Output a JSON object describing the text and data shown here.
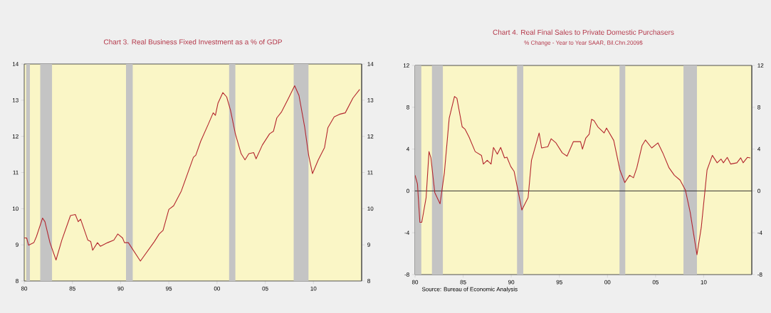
{
  "chart_data": [
    {
      "type": "line",
      "title": "Chart 3. Real Business Fixed Investment as a % of GDP",
      "x": [
        1980.0,
        1980.25,
        1980.45,
        1981.0,
        1981.27,
        1981.9,
        1982.15,
        1982.67,
        1983.3,
        1983.9,
        1984.8,
        1985.3,
        1985.6,
        1985.85,
        1986.6,
        1986.9,
        1987.1,
        1987.6,
        1987.9,
        1988.65,
        1989.3,
        1989.7,
        1990.2,
        1990.4,
        1990.8,
        1992.05,
        1993.5,
        1994.0,
        1994.4,
        1995.0,
        1995.5,
        1996.3,
        1997.55,
        1997.8,
        1998.3,
        1999.1,
        1999.6,
        1999.83,
        2000.1,
        2000.6,
        2001.0,
        2001.4,
        2001.9,
        2002.5,
        2002.9,
        2003.3,
        2003.8,
        2004.05,
        2004.7,
        2005.45,
        2005.85,
        2006.2,
        2006.7,
        2007.35,
        2008.05,
        2008.5,
        2009.1,
        2009.5,
        2009.9,
        2010.5,
        2011.15,
        2011.5,
        2012.15,
        2012.7,
        2013.3,
        2014.1,
        2014.8
      ],
      "series": [
        {
          "color": "#b3262e",
          "values": [
            9.19,
            9.19,
            8.99,
            9.06,
            9.23,
            9.74,
            9.64,
            9.06,
            8.58,
            9.13,
            9.81,
            9.84,
            9.64,
            9.71,
            9.13,
            9.09,
            8.85,
            9.06,
            8.96,
            9.06,
            9.13,
            9.3,
            9.19,
            9.06,
            9.06,
            8.55,
            9.09,
            9.3,
            9.4,
            9.98,
            10.08,
            10.49,
            11.42,
            11.48,
            11.86,
            12.34,
            12.65,
            12.58,
            12.92,
            13.21,
            13.09,
            12.72,
            12.07,
            11.52,
            11.35,
            11.52,
            11.55,
            11.38,
            11.76,
            12.07,
            12.14,
            12.51,
            12.68,
            13.02,
            13.4,
            13.13,
            12.24,
            11.48,
            10.97,
            11.35,
            11.69,
            12.24,
            12.54,
            12.61,
            12.65,
            13.06,
            13.3
          ]
        }
      ],
      "xlim": [
        1980,
        2015
      ],
      "xticks": [
        {
          "value": 1980,
          "label": "80"
        },
        {
          "value": 1985,
          "label": "85"
        },
        {
          "value": 1990,
          "label": "90"
        },
        {
          "value": 1995,
          "label": "95"
        },
        {
          "value": 2000,
          "label": "00"
        },
        {
          "value": 2005,
          "label": "05"
        },
        {
          "value": 2010,
          "label": "10"
        }
      ],
      "ylim": [
        8,
        14
      ],
      "yticks": [
        8,
        9,
        10,
        11,
        12,
        13,
        14
      ],
      "y2lim": [
        8,
        14
      ],
      "y2ticks": [
        8,
        9,
        10,
        11,
        12,
        13,
        14
      ],
      "bands": [
        {
          "axis": "x",
          "from": 1980.2,
          "to": 1980.6,
          "color": "#c4c4c4"
        },
        {
          "axis": "x",
          "from": 1981.65,
          "to": 1982.9,
          "color": "#c4c4c4"
        },
        {
          "axis": "x",
          "from": 1990.56,
          "to": 1991.27,
          "color": "#c4c4c4"
        },
        {
          "axis": "x",
          "from": 2001.25,
          "to": 2001.9,
          "color": "#c4c4c4"
        },
        {
          "axis": "x",
          "from": 2007.95,
          "to": 2009.5,
          "color": "#c4c4c4"
        }
      ]
    },
    {
      "type": "line",
      "title": "Chart 4.  Real Final Sales to Private Domestic Purchasers",
      "subtitle": "% Change - Year to Year    SAAR, Bil.Chn.2009$",
      "annotations": [
        "Source:  Bureau of Economic Analysis"
      ],
      "x": [
        1980.0,
        1980.25,
        1980.5,
        1980.7,
        1981.15,
        1981.45,
        1981.65,
        1982.05,
        1982.6,
        1983.05,
        1983.55,
        1984.1,
        1984.35,
        1984.9,
        1985.2,
        1985.6,
        1986.25,
        1986.9,
        1987.1,
        1987.5,
        1987.9,
        1988.15,
        1988.55,
        1988.9,
        1989.3,
        1989.55,
        1989.95,
        1990.3,
        1991.1,
        1991.75,
        1992.1,
        1992.9,
        1993.15,
        1993.8,
        1994.15,
        1994.65,
        1995.3,
        1995.8,
        1996.45,
        1997.2,
        1997.4,
        1997.75,
        1998.1,
        1998.35,
        1998.6,
        1999.0,
        1999.65,
        1999.9,
        2000.65,
        2001.3,
        2001.8,
        2002.3,
        2002.7,
        2003.05,
        2003.6,
        2003.95,
        2004.6,
        2005.25,
        2005.75,
        2006.4,
        2006.95,
        2007.55,
        2008.1,
        2008.6,
        2009.3,
        2009.75,
        2010.35,
        2010.9,
        2011.4,
        2011.8,
        2012.05,
        2012.45,
        2012.8,
        2013.45,
        2013.85,
        2014.1,
        2014.55,
        2014.85
      ],
      "series": [
        {
          "color": "#b3262e",
          "values": [
            1.5,
            0.67,
            -3.0,
            -3.0,
            -0.64,
            3.76,
            3.16,
            -0.16,
            -1.23,
            1.74,
            6.96,
            9.03,
            8.86,
            6.13,
            5.9,
            5.18,
            3.76,
            3.4,
            2.57,
            2.93,
            2.57,
            4.16,
            3.52,
            4.16,
            3.16,
            3.23,
            2.33,
            1.86,
            -1.82,
            -0.64,
            2.93,
            5.54,
            4.11,
            4.23,
            4.99,
            4.59,
            3.64,
            3.33,
            4.71,
            4.71,
            4.0,
            5.06,
            5.42,
            6.85,
            6.73,
            6.13,
            5.54,
            6.01,
            4.83,
            1.98,
            0.8,
            1.5,
            1.26,
            2.21,
            4.35,
            4.87,
            4.11,
            4.59,
            3.64,
            2.21,
            1.5,
            1.03,
            0.08,
            -2.06,
            -6.1,
            -3.49,
            2.0,
            3.4,
            2.69,
            3.05,
            2.69,
            3.21,
            2.57,
            2.69,
            3.16,
            2.69,
            3.21,
            3.16
          ]
        }
      ],
      "xlim": [
        1980,
        2015
      ],
      "xticks": [
        {
          "value": 1980,
          "label": "80"
        },
        {
          "value": 1985,
          "label": "85"
        },
        {
          "value": 1990,
          "label": "90"
        },
        {
          "value": 1995,
          "label": "95"
        },
        {
          "value": 2000,
          "label": "00"
        },
        {
          "value": 2005,
          "label": "05"
        },
        {
          "value": 2010,
          "label": "10"
        }
      ],
      "ylim": [
        -8,
        12
      ],
      "yticks": [
        -8,
        -4,
        0,
        4,
        8,
        12
      ],
      "y2lim": [
        -8,
        12
      ],
      "y2ticks": [
        -8,
        -4,
        0,
        4,
        8,
        12
      ],
      "ref_lines": [
        {
          "axis": "y",
          "value": 0,
          "color": "#202020"
        }
      ],
      "bands": [
        {
          "axis": "x",
          "from": 1980.0,
          "to": 1980.65,
          "color": "#c4c4c4"
        },
        {
          "axis": "x",
          "from": 1981.75,
          "to": 1982.9,
          "color": "#c4c4c4"
        },
        {
          "axis": "x",
          "from": 1990.6,
          "to": 1991.25,
          "color": "#c4c4c4"
        },
        {
          "axis": "x",
          "from": 2001.25,
          "to": 2001.85,
          "color": "#c4c4c4"
        },
        {
          "axis": "x",
          "from": 2007.9,
          "to": 2009.3,
          "color": "#c4c4c4"
        }
      ]
    }
  ]
}
